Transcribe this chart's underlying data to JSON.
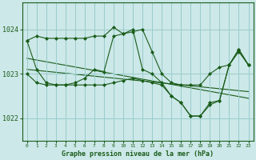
{
  "title": "Graphe pression niveau de la mer (hPa)",
  "bg_color": "#cce8e8",
  "line_color": "#1a5c1a",
  "grid_color": "#99cccc",
  "x_ticks": [
    0,
    1,
    2,
    3,
    4,
    5,
    6,
    7,
    8,
    9,
    10,
    11,
    12,
    13,
    14,
    15,
    16,
    17,
    18,
    19,
    20,
    21,
    22,
    23
  ],
  "y_ticks": [
    1022,
    1023,
    1024
  ],
  "ylim": [
    1021.5,
    1024.6
  ],
  "xlim": [
    -0.5,
    23.5
  ],
  "series1": [
    1023.75,
    1023.85,
    1023.8,
    1023.8,
    1023.8,
    1023.8,
    1023.8,
    1023.85,
    1023.85,
    1024.05,
    1023.9,
    1023.95,
    1024.0,
    1023.5,
    1023.0,
    1022.8,
    1022.75,
    1022.75,
    1022.75,
    1023.0,
    1023.15,
    1023.2,
    1023.5,
    1023.2
  ],
  "series2": [
    1023.75,
    1023.1,
    1022.8,
    1022.75,
    1022.75,
    1022.8,
    1022.9,
    1023.1,
    1023.05,
    1023.85,
    1023.9,
    1024.0,
    1023.1,
    1023.0,
    1022.8,
    1022.5,
    1022.35,
    1022.05,
    1022.05,
    1022.35,
    1022.4,
    1023.2,
    1023.55,
    1023.2
  ],
  "series3": [
    1023.0,
    1022.8,
    1022.75,
    1022.75,
    1022.75,
    1022.75,
    1022.75,
    1022.75,
    1022.75,
    1022.8,
    1022.85,
    1022.9,
    1022.85,
    1022.8,
    1022.75,
    1022.5,
    1022.35,
    1022.05,
    1022.05,
    1022.3,
    1022.4,
    1023.2,
    1023.55,
    1023.2
  ],
  "trend1_x": [
    0,
    23
  ],
  "trend1_y": [
    1023.35,
    1022.45
  ],
  "trend2_x": [
    0,
    23
  ],
  "trend2_y": [
    1023.1,
    1022.6
  ]
}
